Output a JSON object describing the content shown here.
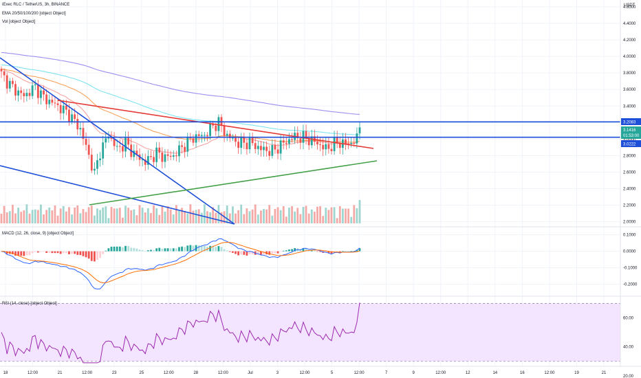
{
  "header": {
    "pair_title": "iExec RLC / TetherUS, 3h, BINANCE",
    "ema_label": "EMA 20/50/100/200 [object Object]",
    "vol_label": "Vol [object Object]",
    "macd_label": "MACD (12, 26, close, 9) [object Object]",
    "rsi_label": "RSI (14, close) [object Object]"
  },
  "currency": "USDT",
  "colors": {
    "up": "#26a69a",
    "down": "#ef5350",
    "ema20": "#f6a4a4",
    "ema50": "#f7a35c",
    "ema100": "#7fe3f0",
    "ema200": "#9c8ff0",
    "macd": "#2962ff",
    "signal": "#ff6d00",
    "trend_red": "#e53935",
    "trend_green": "#43a047",
    "trend_blue": "#1e4fd8",
    "hline": "#1e4fd8",
    "rsi_line": "#9c27b0",
    "rsi_band": "#f3e5ff"
  },
  "badges": {
    "resistance": "3.2083",
    "last": "3.1416",
    "countdown": "01:53:00",
    "support": "3.0222"
  },
  "chart_data": [
    {
      "type": "candlestick",
      "title": "iExec RLC / TetherUS, 3h, BINANCE",
      "ylim": [
        1.98,
        4.6
      ],
      "price_ticks": [
        "4.6000",
        "4.4000",
        "4.2000",
        "4.0000",
        "3.8000",
        "3.6000",
        "3.4000",
        "3.2000",
        "3.0000",
        "2.8000",
        "2.6000",
        "2.4000",
        "2.2000",
        "2.0000"
      ],
      "x_ticks": [
        "18",
        "12:00",
        "21",
        "12:00",
        "23",
        "25",
        "12:00",
        "28",
        "12:00",
        "Jul",
        "3",
        "12:00",
        "5",
        "12:00",
        "7",
        "9",
        "12:00",
        "12",
        "14",
        "16",
        "12:00",
        "19",
        "21"
      ],
      "candle_count": 128,
      "series": [
        {
          "name": "EMA 20",
          "ema_period": 20
        },
        {
          "name": "EMA 50",
          "ema_period": 50
        },
        {
          "name": "EMA 100",
          "ema_period": 100
        },
        {
          "name": "EMA 200",
          "ema_period": 200
        }
      ],
      "levels": [
        3.2083,
        3.0222
      ]
    },
    {
      "type": "line",
      "title": "MACD (12, 26, close, 9)",
      "ylim": [
        -0.26,
        0.14
      ],
      "ticks": [
        "0.1000",
        "0.0000",
        "-0.1000",
        "-0.2000"
      ]
    },
    {
      "type": "line",
      "title": "RSI (14, close)",
      "ylim": [
        28,
        74
      ],
      "ticks": [
        "60.00",
        "40.00",
        "20.00"
      ],
      "band": [
        30,
        70
      ]
    }
  ]
}
